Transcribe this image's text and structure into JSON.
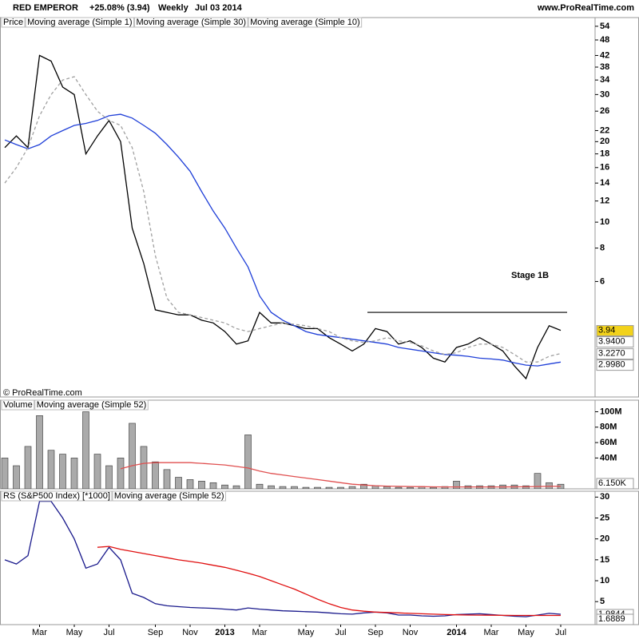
{
  "header": {
    "symbol": "RED EMPEROR",
    "change": "+25.08% (3.94)",
    "period": "Weekly",
    "date": "Jul 03 2014",
    "site": "www.ProRealTime.com",
    "copyright": "© ProRealTime.com"
  },
  "chart_data": [
    {
      "type": "line",
      "label": "Price",
      "log_scale": true,
      "ylim": [
        2.22,
        58.2
      ],
      "yticks": [
        54,
        48,
        42,
        38,
        34,
        30,
        26,
        22,
        20,
        18,
        16,
        14,
        12,
        10,
        8,
        6
      ],
      "annotation": "Stage 1B",
      "resistance": 4.6,
      "series": [
        {
          "name": "Moving average (Simple 1)",
          "color": "#000000",
          "values": [
            19,
            21,
            19,
            42,
            40,
            32,
            30,
            18,
            21,
            24,
            20,
            9.5,
            7,
            4.7,
            4.6,
            4.5,
            4.5,
            4.3,
            4.2,
            3.9,
            3.5,
            3.6,
            4.6,
            4.2,
            4.2,
            4.1,
            4.0,
            4.0,
            3.7,
            3.5,
            3.3,
            3.5,
            4.0,
            3.9,
            3.5,
            3.6,
            3.4,
            3.1,
            3.0,
            3.4,
            3.5,
            3.7,
            3.5,
            3.3,
            2.9,
            2.6,
            3.4,
            4.1,
            3.94
          ]
        },
        {
          "name": "Moving average (Simple 30)",
          "color": "#1f3fd8",
          "values": [
            20.3,
            19.5,
            18.8,
            19.5,
            21,
            22,
            23,
            23.4,
            24,
            25,
            25.3,
            24.5,
            23,
            21.5,
            19.5,
            17.5,
            15.5,
            13,
            11,
            9.5,
            8,
            6.8,
            5.3,
            4.6,
            4.3,
            4.1,
            3.9,
            3.8,
            3.75,
            3.7,
            3.65,
            3.6,
            3.55,
            3.5,
            3.4,
            3.35,
            3.3,
            3.25,
            3.2,
            3.18,
            3.15,
            3.1,
            3.08,
            3.05,
            2.98,
            2.92,
            2.9,
            2.95,
            2.998
          ]
        },
        {
          "name": "Moving average (Simple 10)",
          "color": "#a0a0a0",
          "dashed": true,
          "values": [
            14,
            16,
            19,
            25,
            30,
            34,
            35,
            30,
            26,
            24,
            23,
            19,
            13,
            7.5,
            5.2,
            4.6,
            4.5,
            4.4,
            4.3,
            4.2,
            4.0,
            3.9,
            4.0,
            4.1,
            4.2,
            4.15,
            4.1,
            4.0,
            3.9,
            3.7,
            3.6,
            3.55,
            3.6,
            3.7,
            3.6,
            3.55,
            3.45,
            3.3,
            3.2,
            3.25,
            3.4,
            3.5,
            3.5,
            3.4,
            3.2,
            3.0,
            3.0,
            3.15,
            3.227
          ]
        }
      ],
      "last_labels": [
        {
          "value": 3.94,
          "label": "3.94",
          "color": "#f2d21b"
        },
        {
          "value": 3.94,
          "label": "3.9400",
          "color": "#ffffff"
        },
        {
          "value": 3.227,
          "label": "3.2270",
          "color": "#ffffff"
        },
        {
          "value": 2.998,
          "label": "2.9980",
          "color": "#ffffff"
        }
      ]
    },
    {
      "type": "bar",
      "label": "Volume",
      "ylim": [
        0,
        115
      ],
      "yticks": [
        {
          "value": 100,
          "label": "100M"
        },
        {
          "value": 80,
          "label": "80M"
        },
        {
          "value": 60,
          "label": "60M"
        },
        {
          "value": 40,
          "label": "40M"
        }
      ],
      "series": [
        {
          "type": "bar",
          "color": "#aaaaaa",
          "values": [
            40,
            30,
            55,
            95,
            50,
            45,
            40,
            100,
            45,
            30,
            40,
            85,
            55,
            35,
            25,
            15,
            12,
            10,
            8,
            5,
            4,
            70,
            6,
            4,
            3,
            3,
            2,
            2,
            2,
            2,
            3,
            6,
            4,
            3,
            2,
            2,
            3,
            2,
            3,
            10,
            4,
            4,
            4,
            5,
            5,
            4,
            20,
            8,
            6
          ]
        },
        {
          "name": "Moving average (Simple 52)",
          "color": "#e05050",
          "values": [
            null,
            null,
            null,
            null,
            null,
            null,
            null,
            null,
            null,
            null,
            26,
            30,
            33,
            34,
            34,
            34,
            34,
            33,
            32,
            31,
            29,
            27,
            23,
            20,
            18,
            16,
            14,
            12,
            10,
            8,
            6,
            5,
            4,
            3.5,
            3.2,
            3,
            2.8,
            2.6,
            2.5,
            2.5,
            2.5,
            2.5,
            2.5,
            2.5,
            2.6,
            2.7,
            3,
            3.2,
            3.3
          ]
        }
      ],
      "last_labels": [
        {
          "value": 6.15,
          "label": "6.150K",
          "color": "#ffffff"
        }
      ]
    },
    {
      "type": "line",
      "label": "RS (S&P500 Index) [*1000]",
      "ylim": [
        -0.5,
        31.4
      ],
      "yticks": [
        30,
        25,
        20,
        15,
        10,
        5
      ],
      "categories": [
        null,
        null,
        null,
        "Mar",
        null,
        null,
        "May",
        null,
        null,
        "Jul",
        null,
        null,
        null,
        "Sep",
        null,
        null,
        "Nov",
        null,
        null,
        "2013",
        null,
        null,
        "Mar",
        null,
        null,
        null,
        "May",
        null,
        null,
        "Jul",
        null,
        null,
        "Sep",
        null,
        null,
        "Nov",
        null,
        null,
        null,
        "2014",
        null,
        null,
        "Mar",
        null,
        null,
        "May",
        null,
        null,
        "Jul"
      ],
      "series": [
        {
          "color": "#1a1a8c",
          "values": [
            15,
            14,
            16,
            29,
            29,
            25,
            20,
            13,
            14,
            18,
            15,
            7,
            6,
            4.5,
            4,
            3.8,
            3.6,
            3.5,
            3.4,
            3.2,
            3.0,
            3.5,
            3.2,
            3.0,
            2.8,
            2.7,
            2.6,
            2.5,
            2.3,
            2.1,
            2.0,
            2.3,
            2.5,
            2.3,
            1.8,
            1.8,
            1.6,
            1.5,
            1.6,
            1.9,
            2.0,
            2.1,
            1.9,
            1.7,
            1.5,
            1.4,
            1.8,
            2.2,
            1.9844
          ]
        },
        {
          "name": "Moving average (Simple 52)",
          "color": "#e01010",
          "values": [
            null,
            null,
            null,
            null,
            null,
            null,
            null,
            null,
            18,
            18.2,
            17.5,
            17,
            16.5,
            16,
            15.5,
            15,
            14.6,
            14.2,
            13.7,
            13.2,
            12.5,
            11.8,
            11,
            10,
            9,
            8,
            6.8,
            5.6,
            4.5,
            3.6,
            3.0,
            2.7,
            2.5,
            2.4,
            2.3,
            2.2,
            2.1,
            2.0,
            1.9,
            1.85,
            1.8,
            1.78,
            1.75,
            1.72,
            1.7,
            1.69,
            1.69,
            1.69,
            1.6889
          ]
        }
      ],
      "last_labels": [
        {
          "value": 1.9844,
          "label": "1.9844",
          "color": "#ffffff"
        },
        {
          "value": 1.6889,
          "label": "1.6889",
          "color": "#ffffff"
        }
      ]
    }
  ]
}
